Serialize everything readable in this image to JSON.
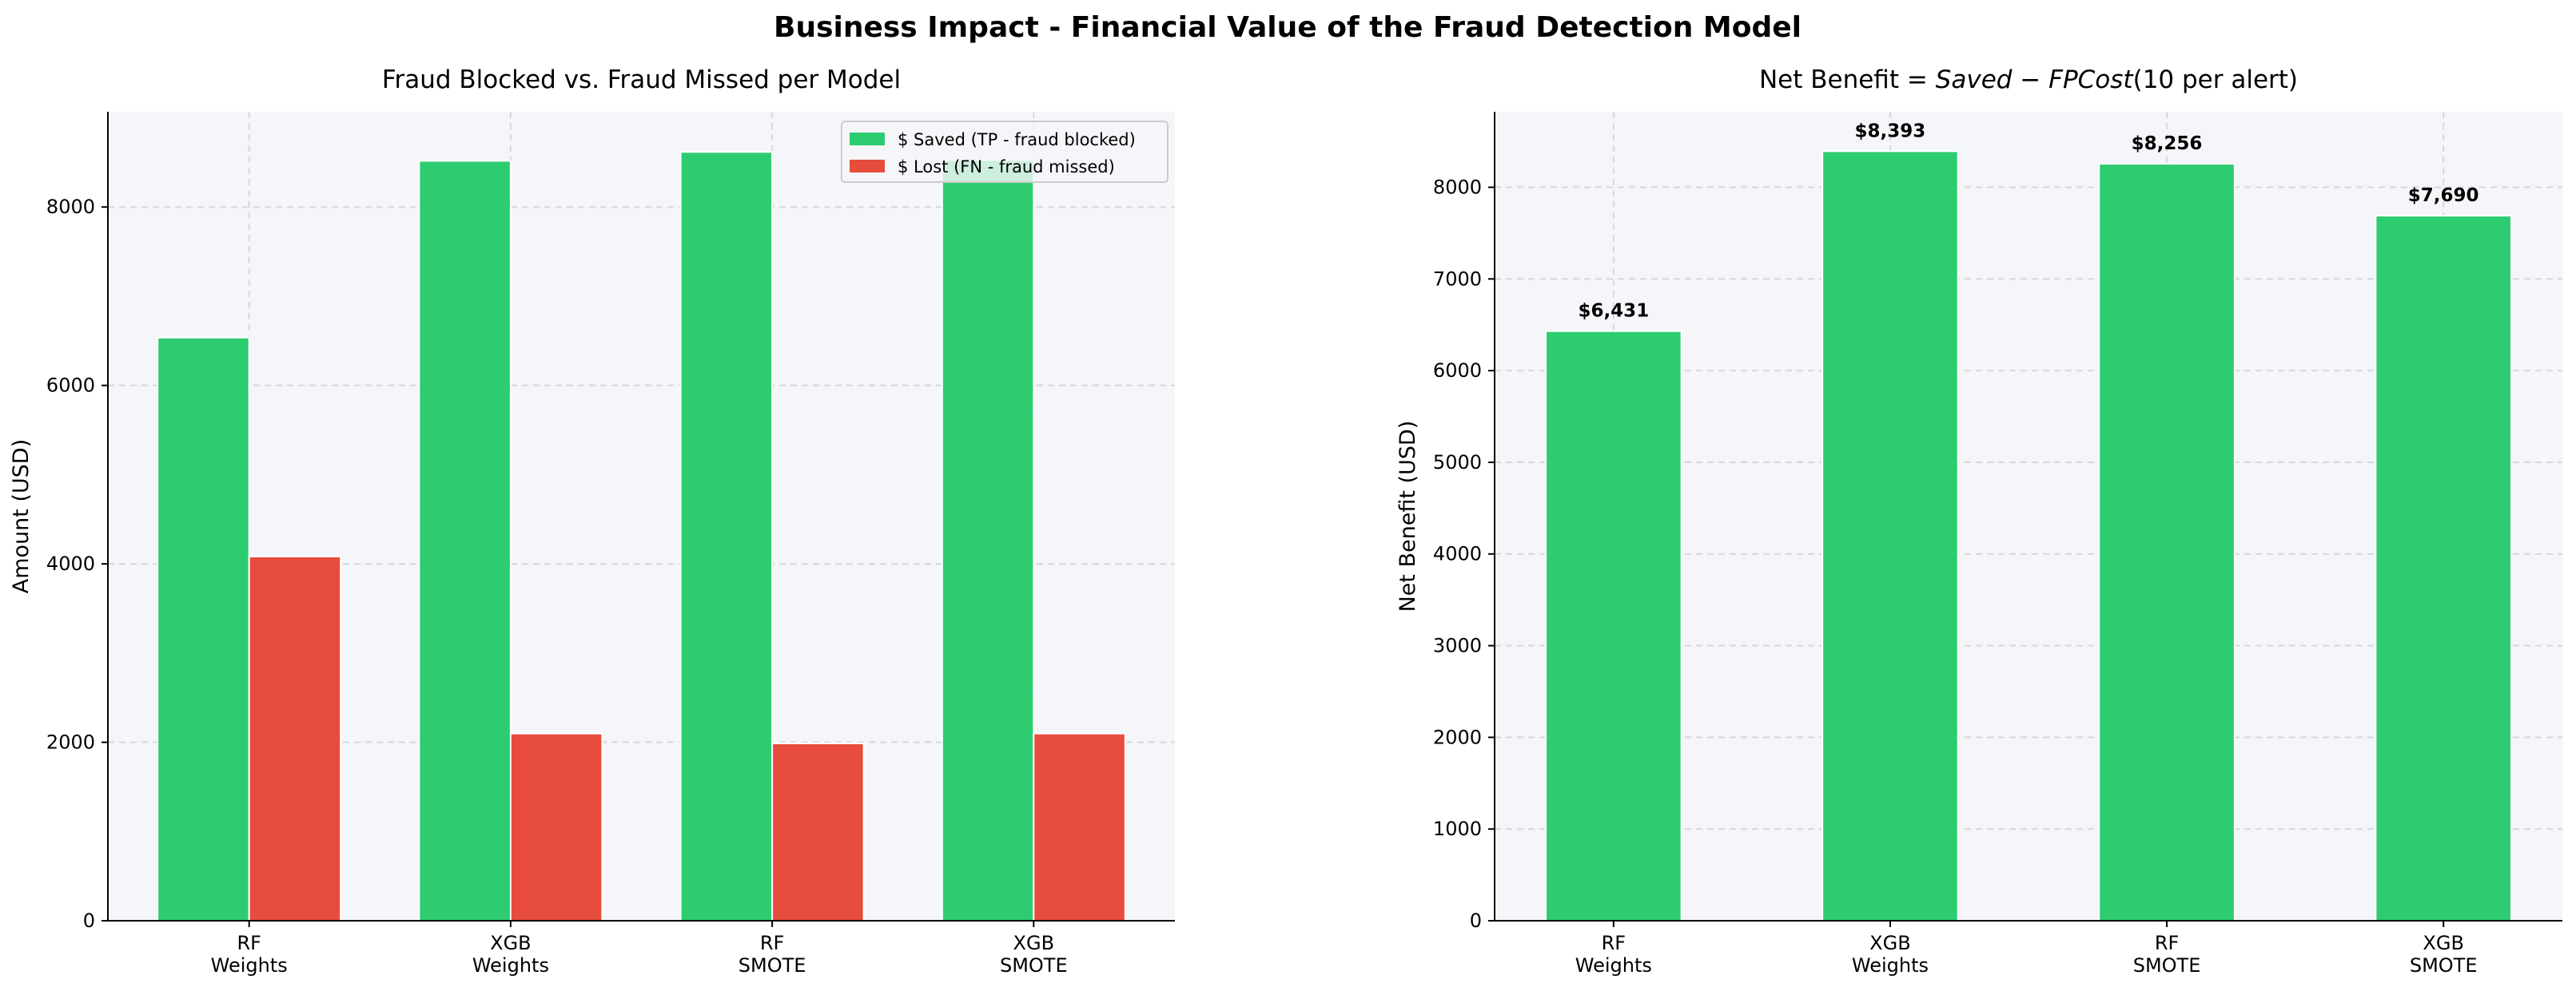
{
  "title": "Business Impact - Financial Value of the Fraud Detection Model",
  "colors": {
    "saved": "#2ecc71",
    "lost": "#e74c3c",
    "axes_bg": "#f5f6fa",
    "grid": "#d8d8dc"
  },
  "chart_data": [
    {
      "type": "bar",
      "title": "Fraud Blocked vs. Fraud Missed per Model",
      "xlabel": "",
      "ylabel": "Amount (USD)",
      "categories": [
        [
          "RF",
          "Weights"
        ],
        [
          "XGB",
          "Weights"
        ],
        [
          "RF",
          "SMOTE"
        ],
        [
          "XGB",
          "SMOTE"
        ]
      ],
      "series": [
        {
          "name": "$ Saved  (TP - fraud blocked)",
          "color": "#2ecc71",
          "values": [
            6536,
            8517,
            8617,
            8525
          ]
        },
        {
          "name": "$ Lost   (FN - fraud missed)",
          "color": "#e74c3c",
          "values": [
            4082,
            2098,
            1988,
            2098
          ]
        }
      ],
      "ylim": [
        0,
        9067
      ],
      "yticks": [
        0,
        2000,
        4000,
        6000,
        8000
      ],
      "grid": true,
      "legend": "top-right"
    },
    {
      "type": "bar",
      "title_parts": [
        "Net Benefit = ",
        "Saved",
        " − ",
        "FPCost",
        "(10 per alert)"
      ],
      "xlabel": "",
      "ylabel": "Net Benefit (USD)",
      "categories": [
        [
          "RF",
          "Weights"
        ],
        [
          "XGB",
          "Weights"
        ],
        [
          "RF",
          "SMOTE"
        ],
        [
          "XGB",
          "SMOTE"
        ]
      ],
      "values": [
        6431,
        8393,
        8256,
        7690
      ],
      "data_labels": [
        "$6,431",
        "$8,393",
        "$8,256",
        "$7,690"
      ],
      "color": "#2ecc71",
      "ylim": [
        0,
        8823
      ],
      "yticks": [
        0,
        1000,
        2000,
        3000,
        4000,
        5000,
        6000,
        7000,
        8000
      ],
      "grid": true
    }
  ]
}
